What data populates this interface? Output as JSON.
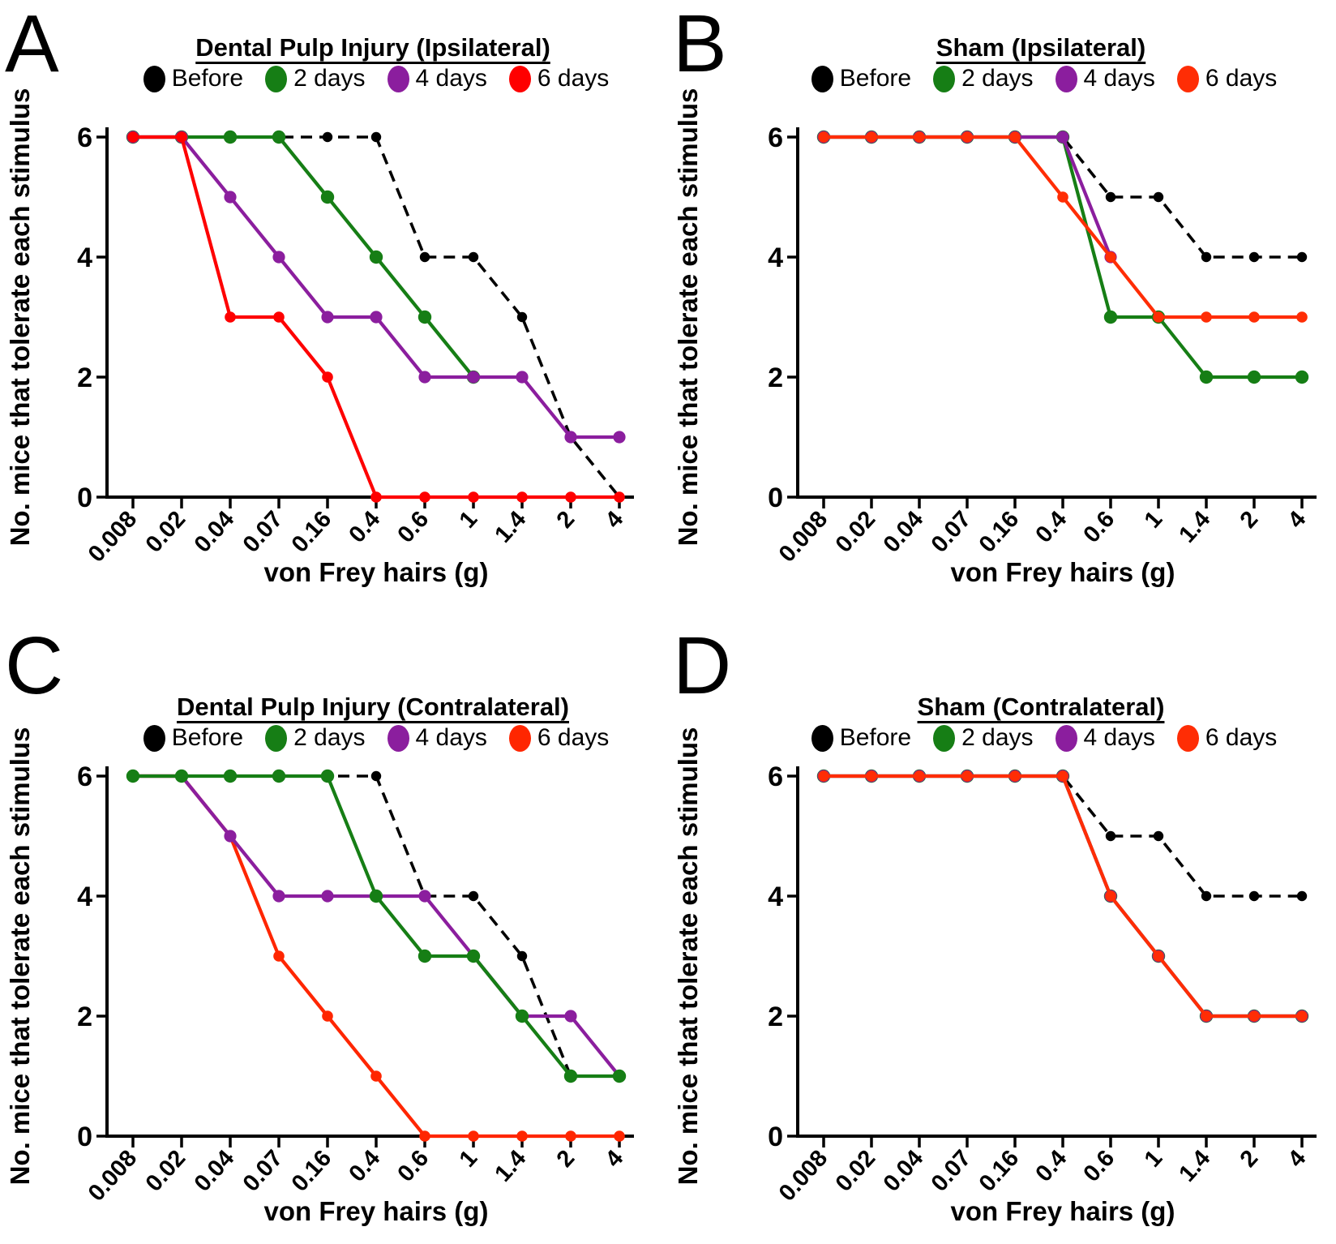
{
  "figure": {
    "background": "#ffffff",
    "text_color": "#000000",
    "ylabel": "No. mice that tolerate each stimulus",
    "xlabel": "von Frey hairs (g)"
  },
  "chart_data": [
    {
      "panel": "A",
      "type": "line",
      "title": "Dental Pulp Injury (Ipsilateral)",
      "xlabel": "von Frey hairs (g)",
      "ylabel": "No. mice that tolerate each stimulus",
      "categories": [
        "0.008",
        "0.02",
        "0.04",
        "0.07",
        "0.16",
        "0.4",
        "0.6",
        "1",
        "1.4",
        "2",
        "4"
      ],
      "ylim": [
        0,
        6
      ],
      "yticks": [
        0,
        2,
        4,
        6
      ],
      "grid": false,
      "legend_position": "top",
      "legend": [
        {
          "label": "Before",
          "color": "#000000"
        },
        {
          "label": "2 days",
          "color": "#167E15"
        },
        {
          "label": "4 days",
          "color": "#8B1E9E"
        },
        {
          "label": "6 days",
          "color": "#FE0000"
        }
      ],
      "series": [
        {
          "name": "before",
          "label": "Before",
          "color": "#000000",
          "dashed": true,
          "marker_radius": 6.2,
          "values": [
            6,
            6,
            6,
            6,
            6,
            6,
            4,
            4,
            3,
            1,
            0
          ]
        },
        {
          "name": "2-days",
          "label": "2 days",
          "color": "#167E15",
          "dashed": false,
          "marker_radius": 8.2,
          "values": [
            6,
            6,
            6,
            6,
            5,
            4,
            3,
            2,
            null,
            null,
            null
          ]
        },
        {
          "name": "4-days",
          "label": "4 days",
          "color": "#8B1E9E",
          "dashed": false,
          "marker_radius": 7.6,
          "values": [
            6,
            6,
            5,
            4,
            3,
            3,
            2,
            2,
            2,
            1,
            1
          ]
        },
        {
          "name": "6-days",
          "label": "6 days",
          "color": "#FE0000",
          "dashed": false,
          "marker_radius": 6.8,
          "values": [
            6,
            6,
            3,
            3,
            2,
            0,
            0,
            0,
            0,
            0,
            0
          ]
        }
      ]
    },
    {
      "panel": "B",
      "type": "line",
      "title": "Sham (Ipsilateral)",
      "xlabel": "von Frey hairs (g)",
      "ylabel": "No. mice that tolerate each stimulus",
      "categories": [
        "0.008",
        "0.02",
        "0.04",
        "0.07",
        "0.16",
        "0.4",
        "0.6",
        "1",
        "1.4",
        "2",
        "4"
      ],
      "ylim": [
        0,
        6
      ],
      "yticks": [
        0,
        2,
        4,
        6
      ],
      "grid": false,
      "legend_position": "top",
      "legend": [
        {
          "label": "Before",
          "color": "#000000"
        },
        {
          "label": "2 days",
          "color": "#167E15"
        },
        {
          "label": "4 days",
          "color": "#8B1E9E"
        },
        {
          "label": "6 days",
          "color": "#FF2D05"
        }
      ],
      "series": [
        {
          "name": "before",
          "label": "Before",
          "color": "#000000",
          "dashed": true,
          "marker_radius": 6.2,
          "values": [
            6,
            6,
            6,
            6,
            6,
            6,
            5,
            5,
            4,
            4,
            4
          ]
        },
        {
          "name": "2-days",
          "label": "2 days",
          "color": "#167E15",
          "dashed": false,
          "marker_radius": 8.2,
          "values": [
            6,
            6,
            6,
            6,
            6,
            6,
            3,
            3,
            2,
            2,
            2
          ]
        },
        {
          "name": "4-days",
          "label": "4 days",
          "color": "#8B1E9E",
          "dashed": false,
          "marker_radius": 7.6,
          "values": [
            6,
            6,
            6,
            6,
            6,
            6,
            4,
            null,
            null,
            null,
            null
          ]
        },
        {
          "name": "6-days",
          "label": "6 days",
          "color": "#FF2D05",
          "dashed": false,
          "marker_radius": 6.8,
          "values": [
            6,
            6,
            6,
            6,
            6,
            5,
            4,
            3,
            3,
            3,
            3
          ]
        }
      ]
    },
    {
      "panel": "C",
      "type": "line",
      "title": "Dental Pulp Injury (Contralateral)",
      "xlabel": "von Frey hairs (g)",
      "ylabel": "No. mice that tolerate each stimulus",
      "categories": [
        "0.008",
        "0.02",
        "0.04",
        "0.07",
        "0.16",
        "0.4",
        "0.6",
        "1",
        "1.4",
        "2",
        "4"
      ],
      "ylim": [
        0,
        6
      ],
      "yticks": [
        0,
        2,
        4,
        6
      ],
      "grid": false,
      "legend_position": "top",
      "legend": [
        {
          "label": "Before",
          "color": "#000000"
        },
        {
          "label": "2 days",
          "color": "#167E15"
        },
        {
          "label": "4 days",
          "color": "#8B1E9E"
        },
        {
          "label": "6 days",
          "color": "#FF2600"
        }
      ],
      "series": [
        {
          "name": "before",
          "label": "Before",
          "color": "#000000",
          "dashed": true,
          "marker_radius": 6.2,
          "values": [
            6,
            6,
            6,
            6,
            6,
            6,
            4,
            4,
            3,
            1,
            null
          ]
        },
        {
          "name": "6-days",
          "label": "6 days",
          "color": "#FF2600",
          "dashed": false,
          "marker_radius": 6.8,
          "values": [
            6,
            6,
            5,
            3,
            2,
            1,
            0,
            0,
            0,
            0,
            0
          ]
        },
        {
          "name": "4-days",
          "label": "4 days",
          "color": "#8B1E9E",
          "dashed": false,
          "marker_radius": 7.6,
          "values": [
            6,
            6,
            5,
            4,
            4,
            4,
            4,
            3,
            2,
            2,
            1
          ]
        },
        {
          "name": "2-days",
          "label": "2 days",
          "color": "#167E15",
          "dashed": false,
          "marker_radius": 8.2,
          "values": [
            6,
            6,
            6,
            6,
            6,
            4,
            3,
            3,
            2,
            1,
            1
          ]
        }
      ]
    },
    {
      "panel": "D",
      "type": "line",
      "title": "Sham (Contralateral)",
      "xlabel": "von Frey hairs (g)",
      "ylabel": "No. mice that tolerate each stimulus",
      "categories": [
        "0.008",
        "0.02",
        "0.04",
        "0.07",
        "0.16",
        "0.4",
        "0.6",
        "1",
        "1.4",
        "2",
        "4"
      ],
      "ylim": [
        0,
        6
      ],
      "yticks": [
        0,
        2,
        4,
        6
      ],
      "grid": false,
      "legend_position": "top",
      "legend": [
        {
          "label": "Before",
          "color": "#000000"
        },
        {
          "label": "2 days",
          "color": "#167E15"
        },
        {
          "label": "4 days",
          "color": "#8B1E9E"
        },
        {
          "label": "6 days",
          "color": "#FF2D05"
        }
      ],
      "series": [
        {
          "name": "before",
          "label": "Before",
          "color": "#000000",
          "dashed": true,
          "marker_radius": 6.2,
          "values": [
            6,
            6,
            6,
            6,
            6,
            6,
            5,
            5,
            4,
            4,
            4
          ]
        },
        {
          "name": "2-days",
          "label": "2 days",
          "color": "#167E15",
          "dashed": false,
          "marker_radius": 8.2,
          "values": [
            6,
            6,
            6,
            6,
            6,
            6,
            4,
            3,
            2,
            2,
            2
          ]
        },
        {
          "name": "4-days",
          "label": "4 days",
          "color": "#8B1E9E",
          "dashed": false,
          "marker_radius": 7.6,
          "values": [
            6,
            6,
            6,
            6,
            6,
            6,
            4,
            3,
            2,
            2,
            2
          ]
        },
        {
          "name": "6-days",
          "label": "6 days",
          "color": "#FF2D05",
          "dashed": false,
          "marker_radius": 6.8,
          "values": [
            6,
            6,
            6,
            6,
            6,
            6,
            4,
            3,
            2,
            2,
            2
          ]
        }
      ]
    }
  ]
}
